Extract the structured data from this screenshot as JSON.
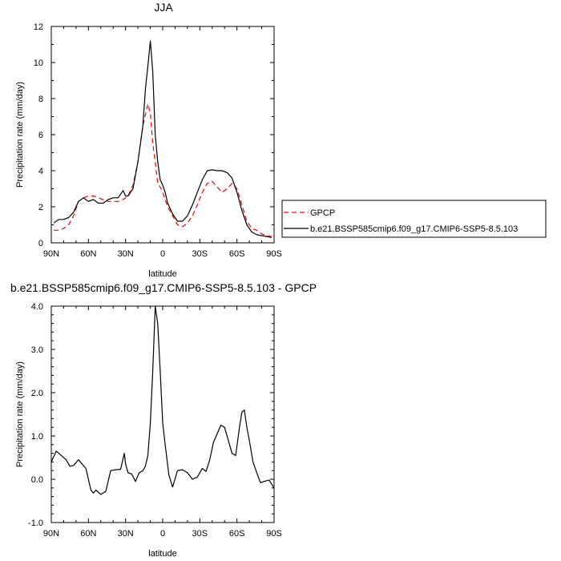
{
  "chart_data": [
    {
      "type": "line",
      "title": "JJA",
      "xlabel": "latitude",
      "ylabel": "Precipitation rate (mm/day)",
      "xlim": [
        90,
        -90
      ],
      "ylim": [
        0,
        12
      ],
      "x_ticks": [
        90,
        60,
        30,
        0,
        -30,
        -60,
        -90
      ],
      "x_tick_labels": [
        "90N",
        "60N",
        "30N",
        "0",
        "30S",
        "60S",
        "90S"
      ],
      "y_ticks": [
        0,
        2,
        4,
        6,
        8,
        10,
        12
      ],
      "y_tick_labels": [
        "0",
        "2",
        "4",
        "6",
        "8",
        "10",
        "12"
      ],
      "grid": false,
      "legend_position": "right",
      "series": [
        {
          "name": "GPCP",
          "color": "#ff0000",
          "dash": "dashed",
          "x": [
            88,
            84,
            80,
            76,
            72,
            68,
            64,
            60,
            56,
            52,
            48,
            44,
            40,
            36,
            32,
            28,
            24,
            20,
            16,
            12,
            10,
            8,
            6,
            4,
            2,
            0,
            -2,
            -4,
            -8,
            -12,
            -16,
            -20,
            -24,
            -28,
            -32,
            -36,
            -40,
            -44,
            -48,
            -52,
            -56,
            -60,
            -64,
            -68,
            -72,
            -76,
            -80,
            -84,
            -88
          ],
          "y": [
            0.7,
            0.7,
            0.8,
            1.0,
            1.5,
            2.3,
            2.5,
            2.6,
            2.6,
            2.5,
            2.4,
            2.3,
            2.3,
            2.3,
            2.4,
            2.6,
            3.2,
            4.5,
            6.5,
            7.7,
            7.2,
            5.5,
            4.5,
            3.3,
            3.1,
            2.8,
            2.4,
            2.0,
            1.5,
            1.0,
            0.9,
            1.1,
            1.5,
            2.1,
            2.8,
            3.3,
            3.4,
            3.1,
            2.8,
            3.0,
            3.3,
            3.0,
            2.1,
            1.2,
            0.8,
            0.7,
            0.5,
            0.4,
            0.35
          ]
        },
        {
          "name": "b.e21.BSSP585cmip6.f09_g17.CMIP6-SSP5-8.5.103",
          "color": "#000000",
          "dash": "solid",
          "x": [
            88,
            84,
            80,
            76,
            72,
            68,
            64,
            60,
            56,
            52,
            48,
            44,
            40,
            36,
            32,
            30,
            28,
            24,
            20,
            16,
            14,
            12,
            10,
            8,
            6,
            4,
            2,
            0,
            -2,
            -4,
            -8,
            -12,
            -16,
            -20,
            -24,
            -28,
            -32,
            -36,
            -40,
            -44,
            -48,
            -52,
            -56,
            -60,
            -64,
            -68,
            -72,
            -76,
            -80,
            -84,
            -88
          ],
          "y": [
            1.1,
            1.3,
            1.3,
            1.4,
            1.7,
            2.3,
            2.5,
            2.3,
            2.4,
            2.2,
            2.2,
            2.4,
            2.5,
            2.5,
            2.9,
            2.6,
            2.6,
            3.0,
            4.5,
            6.5,
            8.5,
            9.8,
            11.2,
            9.5,
            6.0,
            4.5,
            3.5,
            3.2,
            2.8,
            2.2,
            1.6,
            1.2,
            1.2,
            1.5,
            2.1,
            2.8,
            3.5,
            4.0,
            4.05,
            4.0,
            4.0,
            3.9,
            3.6,
            2.8,
            1.8,
            1.0,
            0.6,
            0.45,
            0.4,
            0.35,
            0.3
          ]
        }
      ]
    },
    {
      "type": "line",
      "title": "b.e21.BSSP585cmip6.f09_g17.CMIP6-SSP5-8.5.103 - GPCP",
      "xlabel": "latitude",
      "ylabel": "Precipitation rate (mm/day)",
      "xlim": [
        90,
        -90
      ],
      "ylim": [
        -1.0,
        4.0
      ],
      "x_ticks": [
        90,
        60,
        30,
        0,
        -30,
        -60,
        -90
      ],
      "x_tick_labels": [
        "90N",
        "60N",
        "30N",
        "0",
        "30S",
        "60S",
        "90S"
      ],
      "y_ticks": [
        -1,
        0,
        1,
        2,
        3,
        4
      ],
      "y_tick_labels": [
        "-1.0",
        "0.0",
        "1.0",
        "2.0",
        "3.0",
        "4.0"
      ],
      "grid": false,
      "series": [
        {
          "color": "#000000",
          "dash": "solid",
          "x": [
            90,
            86,
            82,
            78,
            75,
            72,
            68,
            65,
            62,
            60,
            58,
            56,
            54,
            50,
            46,
            42,
            38,
            34,
            31,
            30,
            28,
            25,
            22,
            19,
            16,
            14,
            12,
            10,
            8,
            6,
            4,
            2,
            0,
            -2,
            -5,
            -8,
            -12,
            -16,
            -20,
            -24,
            -28,
            -32,
            -35,
            -38,
            -41,
            -44,
            -47,
            -50,
            -53,
            -56,
            -59,
            -62,
            -64,
            -66,
            -68,
            -70,
            -73,
            -76,
            -79,
            -82,
            -86,
            -90
          ],
          "y": [
            0.4,
            0.65,
            0.55,
            0.45,
            0.3,
            0.32,
            0.45,
            0.35,
            0.25,
            0.0,
            -0.25,
            -0.32,
            -0.25,
            -0.35,
            -0.28,
            0.2,
            0.22,
            0.23,
            0.6,
            0.35,
            0.15,
            0.12,
            -0.05,
            0.15,
            0.2,
            0.3,
            0.55,
            1.3,
            2.5,
            4.0,
            3.6,
            2.5,
            1.3,
            0.8,
            0.1,
            -0.18,
            0.2,
            0.22,
            0.15,
            0.0,
            0.05,
            0.25,
            0.18,
            0.45,
            0.85,
            1.05,
            1.25,
            1.2,
            0.9,
            0.6,
            0.55,
            1.2,
            1.55,
            1.6,
            1.2,
            0.9,
            0.4,
            0.15,
            -0.08,
            -0.05,
            -0.02,
            -0.2
          ]
        }
      ]
    }
  ]
}
